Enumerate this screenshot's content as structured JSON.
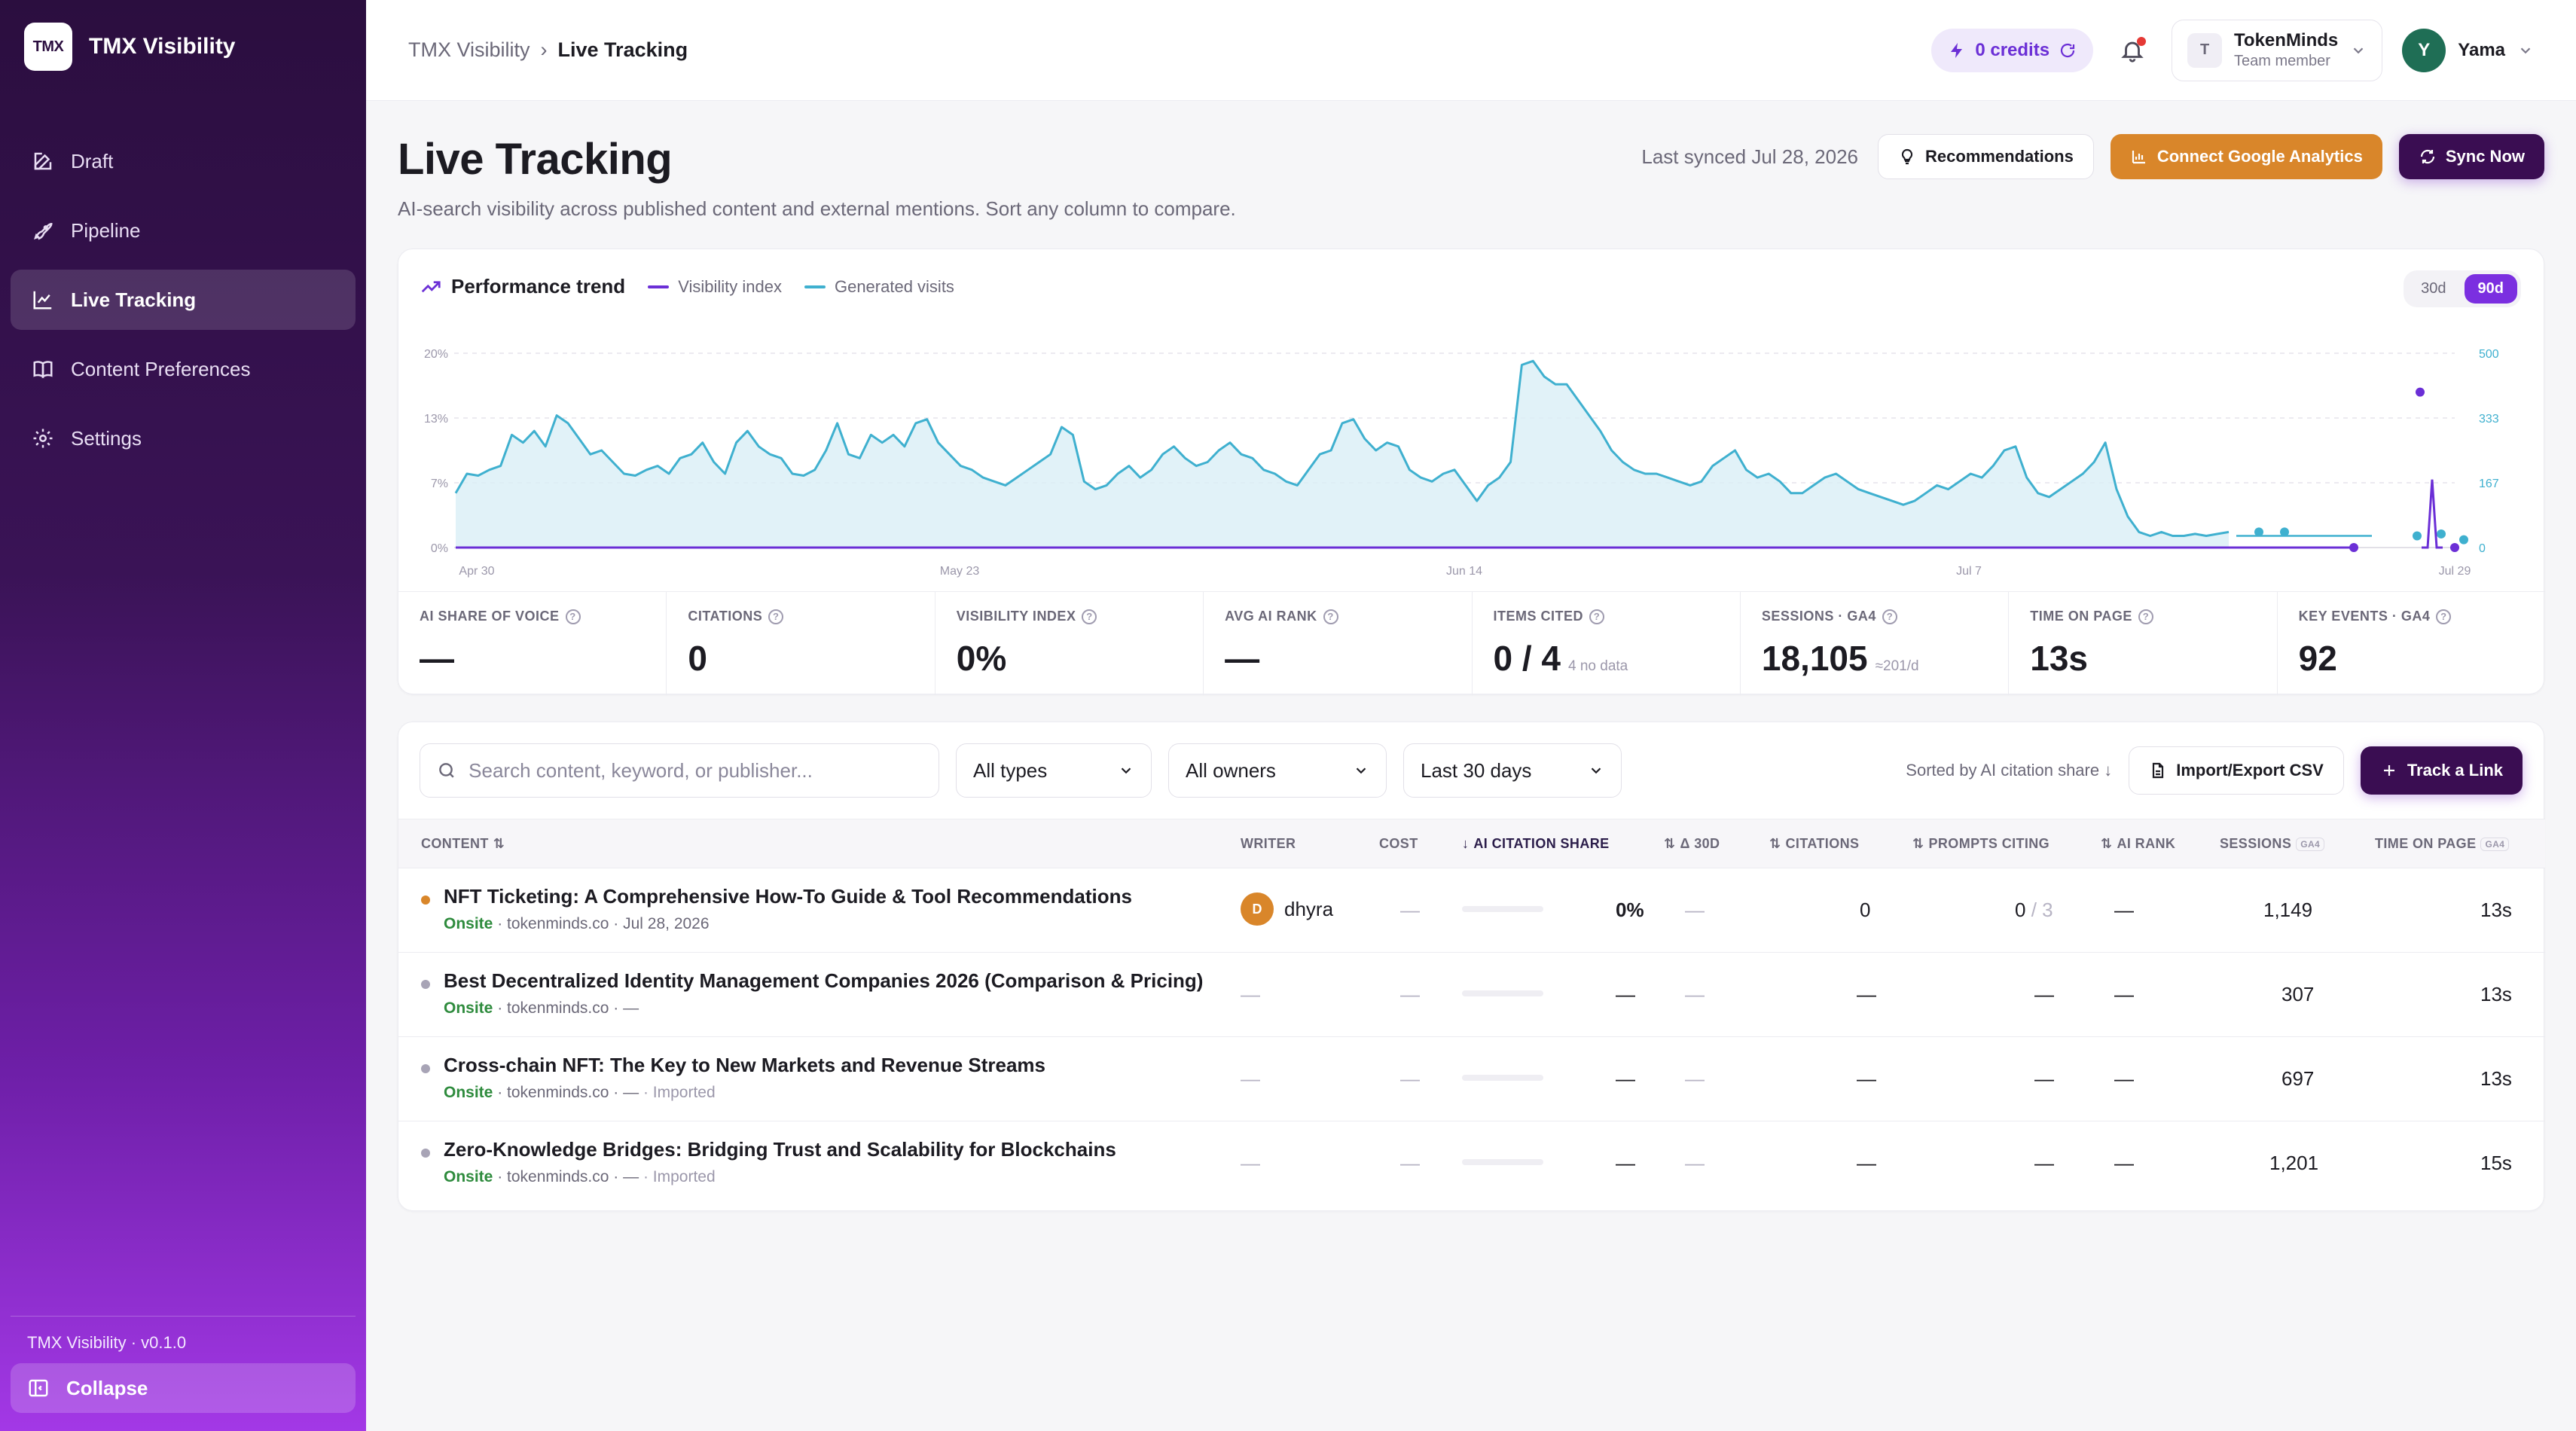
{
  "app": {
    "logo_text": "TMX",
    "name": "TMX Visibility",
    "version": "TMX Visibility · v0.1.0",
    "collapse_label": "Collapse"
  },
  "sidebar": {
    "items": [
      {
        "label": "Draft",
        "icon": "edit-icon"
      },
      {
        "label": "Pipeline",
        "icon": "rocket-icon"
      },
      {
        "label": "Live Tracking",
        "icon": "chart-line-icon",
        "active": true
      },
      {
        "label": "Content Preferences",
        "icon": "book-icon"
      },
      {
        "label": "Settings",
        "icon": "gear-icon"
      }
    ]
  },
  "topbar": {
    "breadcrumb_root": "TMX Visibility",
    "breadcrumb_sep": "›",
    "breadcrumb_current": "Live Tracking",
    "credits": "0 credits",
    "team_initial": "T",
    "team_name": "TokenMinds",
    "team_role": "Team member",
    "user_initial": "Y",
    "user_name": "Yama"
  },
  "page": {
    "title": "Live Tracking",
    "subtitle": "AI-search visibility across published content and external mentions. Sort any column to compare.",
    "last_synced": "Last synced Jul 28, 2026",
    "recommendations_label": "Recommendations",
    "connect_ga_label": "Connect Google Analytics",
    "sync_label": "Sync Now"
  },
  "performance": {
    "title": "Performance trend",
    "legend_visibility": "Visibility index",
    "legend_visits": "Generated visits",
    "range_30": "30d",
    "range_90": "90d",
    "range_selected": "90d"
  },
  "colors": {
    "brand_purple": "#6b2fd6",
    "visits_line": "#3fb0cf",
    "visibility_line": "#6b2fd6",
    "accent_orange": "#d9862a",
    "onsite_green": "#2e8b3d"
  },
  "chart_data": {
    "type": "line",
    "x_tick_labels": [
      "Apr 30",
      "May 23",
      "Jun 14",
      "Jul 7",
      "Jul 29"
    ],
    "y_left_ticks": [
      "20%",
      "13%",
      "7%",
      "0%"
    ],
    "y_right_ticks": [
      "500",
      "333",
      "167",
      "0"
    ],
    "y_left_range": [
      0,
      20
    ],
    "y_right_range": [
      0,
      500
    ],
    "grid": true,
    "legend_placement": "top-left",
    "series": [
      {
        "name": "Generated visits",
        "axis": "right",
        "values": [
          140,
          190,
          185,
          200,
          210,
          290,
          270,
          300,
          260,
          340,
          320,
          280,
          240,
          250,
          220,
          190,
          185,
          200,
          210,
          190,
          230,
          240,
          270,
          220,
          190,
          270,
          300,
          260,
          240,
          230,
          190,
          185,
          200,
          250,
          320,
          240,
          230,
          290,
          270,
          290,
          260,
          320,
          330,
          270,
          240,
          210,
          200,
          180,
          170,
          160,
          180,
          200,
          220,
          240,
          310,
          290,
          170,
          150,
          160,
          190,
          210,
          180,
          200,
          240,
          260,
          230,
          210,
          220,
          250,
          270,
          240,
          230,
          200,
          190,
          170,
          160,
          200,
          240,
          250,
          320,
          330,
          280,
          250,
          270,
          260,
          200,
          180,
          170,
          190,
          200,
          160,
          120,
          160,
          180,
          220,
          470,
          480,
          440,
          420,
          420,
          380,
          340,
          300,
          250,
          220,
          200,
          190,
          190,
          180,
          170,
          160,
          170,
          210,
          230,
          250,
          200,
          180,
          190,
          170,
          140,
          140,
          160,
          180,
          190,
          170,
          150,
          140,
          130,
          120,
          110,
          120,
          140,
          160,
          150,
          170,
          190,
          180,
          210,
          250,
          260,
          180,
          140,
          130,
          150,
          170,
          190,
          220,
          270,
          150,
          80,
          40,
          30,
          40,
          30,
          30,
          35,
          30,
          35,
          40
        ],
        "sparse_points": [
          {
            "x": "Jul 22",
            "y": 40
          },
          {
            "x": "Jul 24",
            "y": 40
          },
          {
            "x": "Jul 27",
            "y": 30
          },
          {
            "x": "Jul 28",
            "y": 35
          },
          {
            "x": "Jul 29",
            "y": 20
          }
        ]
      },
      {
        "name": "Visibility index",
        "axis": "left",
        "values_note": "flat at 0% with a spike near Jul 28",
        "baseline": 0,
        "spike_value": 7,
        "outlier_points": [
          {
            "x": "Jul 27",
            "y": 16
          },
          {
            "x": "Jul 25",
            "y": 0
          },
          {
            "x": "Jul 28",
            "y": 0
          }
        ]
      }
    ]
  },
  "kpis": [
    {
      "label": "AI SHARE OF VOICE",
      "value": "—",
      "note": ""
    },
    {
      "label": "CITATIONS",
      "value": "0",
      "note": ""
    },
    {
      "label": "VISIBILITY INDEX",
      "value": "0%",
      "note": ""
    },
    {
      "label": "AVG AI RANK",
      "value": "—",
      "note": ""
    },
    {
      "label": "ITEMS CITED",
      "value": "0 / 4",
      "note": "4 no data"
    },
    {
      "label": "SESSIONS · GA4",
      "value": "18,105",
      "note": "≈201/d"
    },
    {
      "label": "TIME ON PAGE",
      "value": "13s",
      "note": ""
    },
    {
      "label": "KEY EVENTS · GA4",
      "value": "92",
      "note": ""
    }
  ],
  "table": {
    "search_placeholder": "Search content, keyword, or publisher...",
    "filter_types": "All types",
    "filter_owners": "All owners",
    "filter_range": "Last 30 days",
    "sorted_by": "Sorted by AI citation share",
    "import_export_label": "Import/Export CSV",
    "track_link_label": "Track a Link",
    "columns": {
      "content": "CONTENT",
      "writer": "WRITER",
      "cost": "COST",
      "ai_citation_share": "AI CITATION SHARE",
      "delta_30d": "Δ 30D",
      "citations": "CITATIONS",
      "prompts_citing": "PROMPTS CITING",
      "ai_rank": "AI RANK",
      "sessions": "SESSIONS",
      "time_on_page": "TIME ON PAGE",
      "ga4_badge": "GA4"
    },
    "rows": [
      {
        "title": "NFT Ticketing: A Comprehensive How-To Guide & Tool Recommendations",
        "source": "Onsite",
        "domain": "· tokenminds.co",
        "date": "· Jul 28, 2026",
        "tag": "",
        "dot_color": "#d9862a",
        "writer_initial": "D",
        "writer": "dhyra",
        "cost": "—",
        "share": "0%",
        "delta": "—",
        "citations": "0",
        "prompts": "0",
        "prompts_total": "/ 3",
        "ai_rank": "—",
        "sessions": "1,149",
        "time": "13s"
      },
      {
        "title": "Best Decentralized Identity Management Companies 2026 (Comparison & Pricing)",
        "source": "Onsite",
        "domain": "· tokenminds.co",
        "date": "· —",
        "tag": "",
        "dot_color": "#a8a4b6",
        "writer_initial": "",
        "writer": "—",
        "cost": "—",
        "share": "—",
        "delta": "—",
        "citations": "—",
        "prompts": "—",
        "prompts_total": "",
        "ai_rank": "—",
        "sessions": "307",
        "time": "13s"
      },
      {
        "title": "Cross-chain NFT: The Key to New Markets and Revenue Streams",
        "source": "Onsite",
        "domain": "· tokenminds.co",
        "date": "· —",
        "tag": "· Imported",
        "dot_color": "#a8a4b6",
        "writer_initial": "",
        "writer": "—",
        "cost": "—",
        "share": "—",
        "delta": "—",
        "citations": "—",
        "prompts": "—",
        "prompts_total": "",
        "ai_rank": "—",
        "sessions": "697",
        "time": "13s"
      },
      {
        "title": "Zero-Knowledge Bridges: Bridging Trust and Scalability for Blockchains",
        "source": "Onsite",
        "domain": "· tokenminds.co",
        "date": "· —",
        "tag": "· Imported",
        "dot_color": "#a8a4b6",
        "writer_initial": "",
        "writer": "—",
        "cost": "—",
        "share": "—",
        "delta": "—",
        "citations": "—",
        "prompts": "—",
        "prompts_total": "",
        "ai_rank": "—",
        "sessions": "1,201",
        "time": "15s"
      }
    ]
  }
}
